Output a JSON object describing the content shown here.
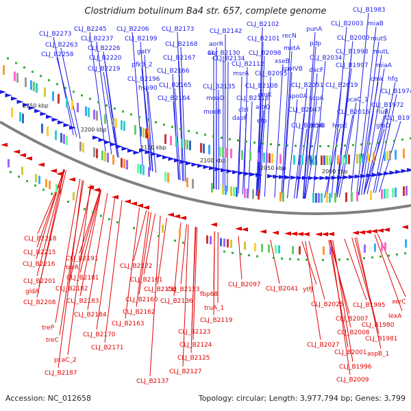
{
  "title": "Clostridium botulinum Ba4 str. 657, complete genome",
  "footer": {
    "accession": "Accession: NC_012658",
    "stats": "Topology: circular; Length: 3,977,794 bp; Genes: 3,799"
  },
  "colors": {
    "forward": "#1a1ae6",
    "reverse": "#e00000",
    "backbone": "#808080"
  },
  "kbp_ticks": [
    "2250 kbp",
    "2200 kbp",
    "2150 kbp",
    "2100 kbp",
    "2050 kbp",
    "2000 kbp"
  ],
  "forward_labels": [
    "CLJ_B2273",
    "CLJ_B2263",
    "CLJ_B2258",
    "CLJ_B2245",
    "CLJ_B2237",
    "CLJ_B2226",
    "CLJ_B2220",
    "CLJ_B2219",
    "CLJ_B2206",
    "CLJ_B2199",
    "gatY",
    "pfkB_2",
    "CLJ_B2196",
    "hsp90",
    "CLJ_B2173",
    "CLJ_B2168",
    "CLJ_B2167",
    "CLJ_B2166",
    "CLJ_B2165",
    "CLJ_B2164",
    "CLJ_B2142",
    "aorR",
    "aor",
    "CLJ_B2134",
    "CLJ_B2130",
    "msrA",
    "CLJ_B2135",
    "moaD",
    "moeB",
    "clsI",
    "dapF",
    "CLJ_B2118",
    "CLJ_B2102",
    "CLJ_B2101",
    "CLJ_B2098",
    "CLJ_B2112",
    "CLJ_B2095",
    "CLJ_B2108",
    "aroK",
    "aroQ",
    "efp",
    "recN",
    "metA",
    "xseB",
    "spoIVB",
    "CLJ_B2051",
    "spo0A",
    "CLJ_B2047",
    "CLJ_B2056",
    "punA",
    "pdp",
    "CLJ_B2034",
    "dacF",
    "scpA",
    "scpB",
    "CLJ_B2019",
    "hypE",
    "CLJ_B2016",
    "CLJ_B2003",
    "CLJ_B1998",
    "CLJ_B1997",
    "CLJ_B2000",
    "pcaC_1",
    "CLJ_B1983",
    "miaB",
    "mutS",
    "mutL",
    "miaA",
    "cmk",
    "hfq",
    "CLJ_B1974",
    "CLJ_B1972",
    "rluB",
    "gluD",
    "CLJ_B1970"
  ],
  "reverse_labels": [
    "CLJ_B2218",
    "CLJ_B2215",
    "CLJ_B2216",
    "CLJ_B2201",
    "gldA",
    "CLJ_B2208",
    "CLJ_B2191",
    "treR",
    "CLJ_B2181",
    "CLJ_B2182",
    "CLJ_B2183",
    "CLJ_B2184",
    "treP",
    "treC",
    "pcaC_2",
    "CLJ_B2187",
    "CLJ_B2172",
    "CLJ_B2161",
    "CLJ_B2156",
    "CLJ_B2160",
    "CLJ_B2162",
    "CLJ_B2163",
    "CLJ_B2170",
    "CLJ_B2171",
    "CLJ_B2133",
    "CLJ_B2136",
    "CLJ_B2119",
    "CLJ_B2123",
    "CLJ_B2124",
    "CLJ_B2125",
    "CLJ_B2127",
    "CLJ_B2137",
    "fbp68",
    "truA_1",
    "CLJ_B2097",
    "CLJ_B2041",
    "ytfJ",
    "CLJ_B2025",
    "CLJ_B2027",
    "CLJ_B1995",
    "CLJ_B2007",
    "CLJ_B2008",
    "CLJ_B2001",
    "CLJ_B1996",
    "CLJ_B2009",
    "xerC",
    "lexA",
    "CLJ_B1980",
    "CLJ_B1981",
    "aspB_1"
  ]
}
